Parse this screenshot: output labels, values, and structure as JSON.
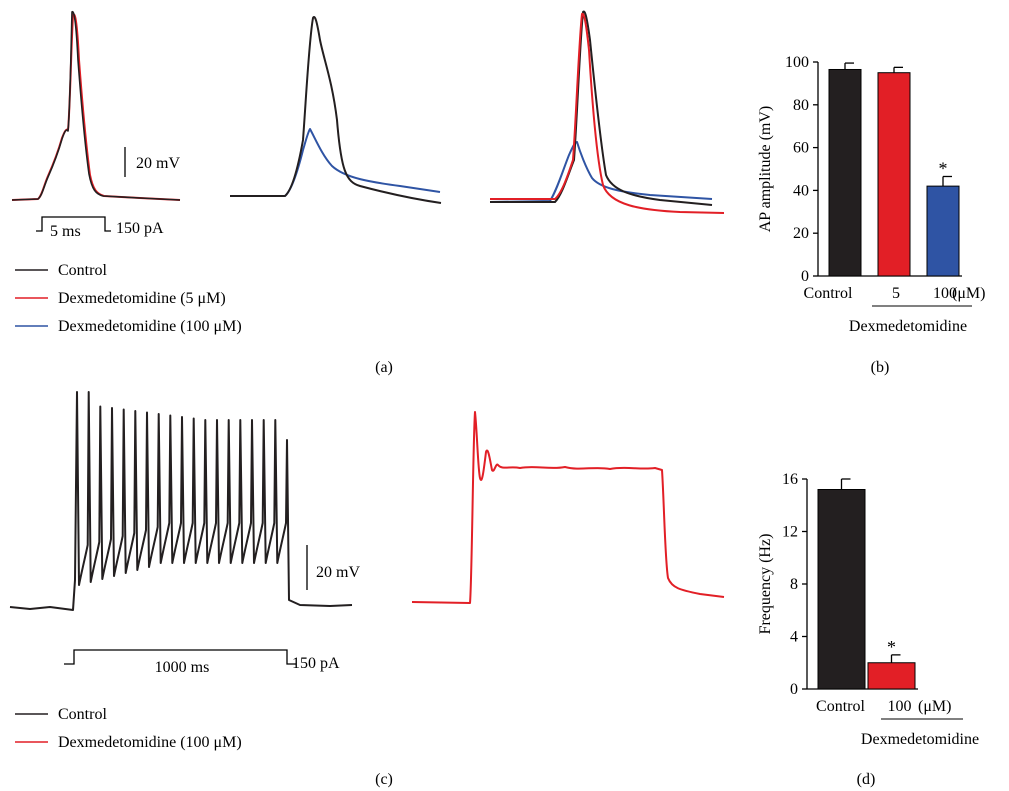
{
  "colors": {
    "control": "#231f20",
    "dex5": "#e21f26",
    "dex100": "#2f54a4",
    "axis": "#000000"
  },
  "panel_labels": {
    "a": "(a)",
    "b": "(b)",
    "c": "(c)",
    "d": "(d)"
  },
  "scale_bars": {
    "a_voltage": "20 mV",
    "a_time": "5 ms",
    "a_current": "150 pA",
    "c_voltage": "20 mV",
    "c_time": "1000 ms",
    "c_current": "150 pA"
  },
  "legends": {
    "a": [
      {
        "label": "Control",
        "color_key": "control"
      },
      {
        "label": "Dexmedetomidine (5 μM)",
        "color_key": "dex5"
      },
      {
        "label": "Dexmedetomidine (100 μM)",
        "color_key": "dex100"
      }
    ],
    "c": [
      {
        "label": "Control",
        "color_key": "control"
      },
      {
        "label": "Dexmedetomidine (100 μM)",
        "color_key": "dex100_red"
      }
    ]
  },
  "chart_data": [
    {
      "id": "b",
      "type": "bar",
      "categories": [
        "Control",
        "5",
        "100"
      ],
      "category_unit": "(μM)",
      "group_label": "Dexmedetomidine",
      "values": [
        96.5,
        95,
        42
      ],
      "errors": [
        3,
        2.5,
        4.5
      ],
      "colors": [
        "#231f20",
        "#e21f26",
        "#2f54a4"
      ],
      "significance": [
        "",
        "",
        "*"
      ],
      "ylabel": "AP amplitude (mV)",
      "ylim": [
        0,
        100
      ],
      "yticks": [
        "0",
        "20",
        "40",
        "60",
        "80",
        "100"
      ]
    },
    {
      "id": "d",
      "type": "bar",
      "categories": [
        "Control",
        "100"
      ],
      "category_unit": "(μM)",
      "group_label": "Dexmedetomidine",
      "values": [
        15.2,
        2
      ],
      "errors": [
        0.8,
        0.6
      ],
      "colors": [
        "#231f20",
        "#e21f26"
      ],
      "significance": [
        "",
        "*"
      ],
      "ylabel": "Frequency (Hz)",
      "ylim": [
        0,
        16
      ],
      "yticks": [
        "0",
        "4",
        "8",
        "12",
        "16"
      ]
    }
  ]
}
